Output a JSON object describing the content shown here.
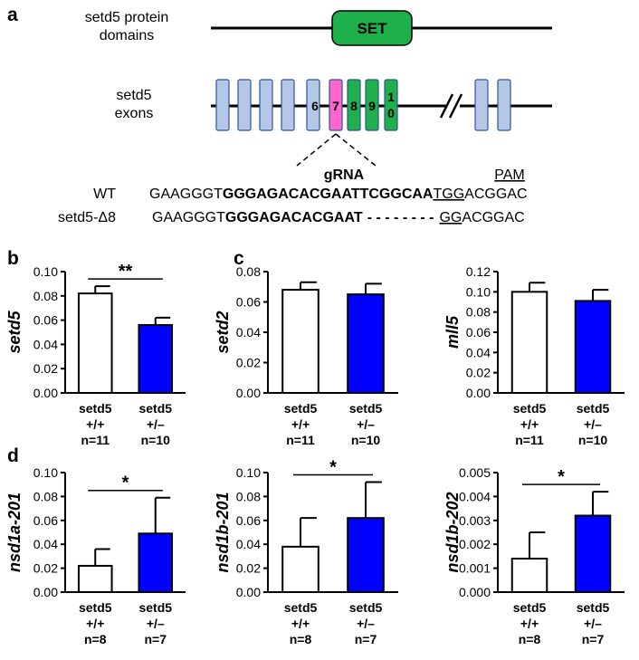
{
  "panel_labels": [
    "a",
    "b",
    "c",
    "d"
  ],
  "diagram": {
    "protein_label": [
      "setd5 protein",
      "domains"
    ],
    "domain": "SET",
    "exon_label": [
      "setd5",
      "exons"
    ],
    "exon_numbers": [
      "6",
      "7",
      "8",
      "9",
      "1",
      "0"
    ],
    "grna": "gRNA",
    "pam": "PAM",
    "sequences": [
      {
        "name": "WT",
        "parts": [
          {
            "text": "GAAGGGT"
          },
          {
            "text": "GGGAGACACGAATTCGGCAA",
            "bold": true
          },
          {
            "text": "TGG",
            "underline": true
          },
          {
            "text": "ACGGAC"
          }
        ]
      },
      {
        "name": "setd5-Δ8",
        "parts": [
          {
            "text": "GAAGGGT"
          },
          {
            "text": "GGGAGACACGAAT",
            "bold": true
          },
          {
            "text": "- - - - - - - -",
            "bold": true
          },
          {
            "text": "GG",
            "underline": true
          },
          {
            "text": "ACGGAC"
          }
        ]
      }
    ]
  },
  "chart_data": [
    {
      "type": "bar",
      "y_label": "setd5",
      "categories": [
        [
          "setd5",
          "+/+",
          "n=11"
        ],
        [
          "setd5",
          "+/–",
          "n=10"
        ]
      ],
      "values": [
        0.082,
        0.056
      ],
      "errors": [
        0.006,
        0.006
      ],
      "colors": [
        "#ffffff",
        "#0000ff"
      ],
      "significance": "**",
      "ylim": [
        0,
        0.1
      ],
      "yticks": [
        {
          "value": 0,
          "label": "0.00"
        },
        {
          "value": 0.02,
          "label": "0.02"
        },
        {
          "value": 0.04,
          "label": "0.04"
        },
        {
          "value": 0.06,
          "label": "0.06"
        },
        {
          "value": 0.08,
          "label": "0.08"
        },
        {
          "value": 0.1,
          "label": "0.10"
        }
      ]
    },
    {
      "type": "bar",
      "y_label": "setd2",
      "categories": [
        [
          "setd5",
          "+/+",
          "n=11"
        ],
        [
          "setd5",
          "+/–",
          "n=10"
        ]
      ],
      "values": [
        0.068,
        0.065
      ],
      "errors": [
        0.005,
        0.007
      ],
      "colors": [
        "#ffffff",
        "#0000ff"
      ],
      "ylim": [
        0,
        0.08
      ],
      "yticks": [
        {
          "value": 0,
          "label": "0.00"
        },
        {
          "value": 0.02,
          "label": "0.02"
        },
        {
          "value": 0.04,
          "label": "0.04"
        },
        {
          "value": 0.06,
          "label": "0.06"
        },
        {
          "value": 0.08,
          "label": "0.08"
        }
      ]
    },
    {
      "type": "bar",
      "y_label": "mll5",
      "categories": [
        [
          "setd5",
          "+/+",
          "n=11"
        ],
        [
          "setd5",
          "+/–",
          "n=10"
        ]
      ],
      "values": [
        0.1,
        0.091
      ],
      "errors": [
        0.009,
        0.011
      ],
      "colors": [
        "#ffffff",
        "#0000ff"
      ],
      "ylim": [
        0,
        0.12
      ],
      "yticks": [
        {
          "value": 0,
          "label": "0.00"
        },
        {
          "value": 0.02,
          "label": "0.02"
        },
        {
          "value": 0.04,
          "label": "0.04"
        },
        {
          "value": 0.06,
          "label": "0.06"
        },
        {
          "value": 0.08,
          "label": "0.08"
        },
        {
          "value": 0.1,
          "label": "0.10"
        },
        {
          "value": 0.12,
          "label": "0.12"
        }
      ]
    },
    {
      "type": "bar",
      "y_label": "nsd1a-201",
      "categories": [
        [
          "setd5",
          "+/+",
          "n=8"
        ],
        [
          "setd5",
          "+/–",
          "n=7"
        ]
      ],
      "values": [
        0.022,
        0.049
      ],
      "errors": [
        0.014,
        0.03
      ],
      "colors": [
        "#ffffff",
        "#0000ff"
      ],
      "significance": "*",
      "ylim": [
        0,
        0.1
      ],
      "yticks": [
        {
          "value": 0,
          "label": "0.00"
        },
        {
          "value": 0.02,
          "label": "0.02"
        },
        {
          "value": 0.04,
          "label": "0.04"
        },
        {
          "value": 0.06,
          "label": "0.06"
        },
        {
          "value": 0.08,
          "label": "0.08"
        },
        {
          "value": 0.1,
          "label": "0.10"
        }
      ]
    },
    {
      "type": "bar",
      "y_label": "nsd1b-201",
      "categories": [
        [
          "setd5",
          "+/+",
          "n=8"
        ],
        [
          "setd5",
          "+/–",
          "n=7"
        ]
      ],
      "values": [
        0.038,
        0.062
      ],
      "errors": [
        0.024,
        0.03
      ],
      "colors": [
        "#ffffff",
        "#0000ff"
      ],
      "significance": "*",
      "ylim": [
        0,
        0.1
      ],
      "yticks": [
        {
          "value": 0,
          "label": "0.00"
        },
        {
          "value": 0.02,
          "label": "0.02"
        },
        {
          "value": 0.04,
          "label": "0.04"
        },
        {
          "value": 0.06,
          "label": "0.06"
        },
        {
          "value": 0.08,
          "label": "0.08"
        },
        {
          "value": 0.1,
          "label": "0.10"
        }
      ]
    },
    {
      "type": "bar",
      "y_label": "nsd1b-202",
      "categories": [
        [
          "setd5",
          "+/+",
          "n=8"
        ],
        [
          "setd5",
          "+/–",
          "n=7"
        ]
      ],
      "values": [
        0.0014,
        0.0032
      ],
      "errors": [
        0.0011,
        0.001
      ],
      "colors": [
        "#ffffff",
        "#0000ff"
      ],
      "significance": "*",
      "ylim": [
        0,
        0.005
      ],
      "yticks": [
        {
          "value": 0,
          "label": "0.000"
        },
        {
          "value": 0.001,
          "label": "0.001"
        },
        {
          "value": 0.002,
          "label": "0.002"
        },
        {
          "value": 0.003,
          "label": "0.003"
        },
        {
          "value": 0.004,
          "label": "0.004"
        },
        {
          "value": 0.005,
          "label": "0.005"
        }
      ]
    }
  ]
}
